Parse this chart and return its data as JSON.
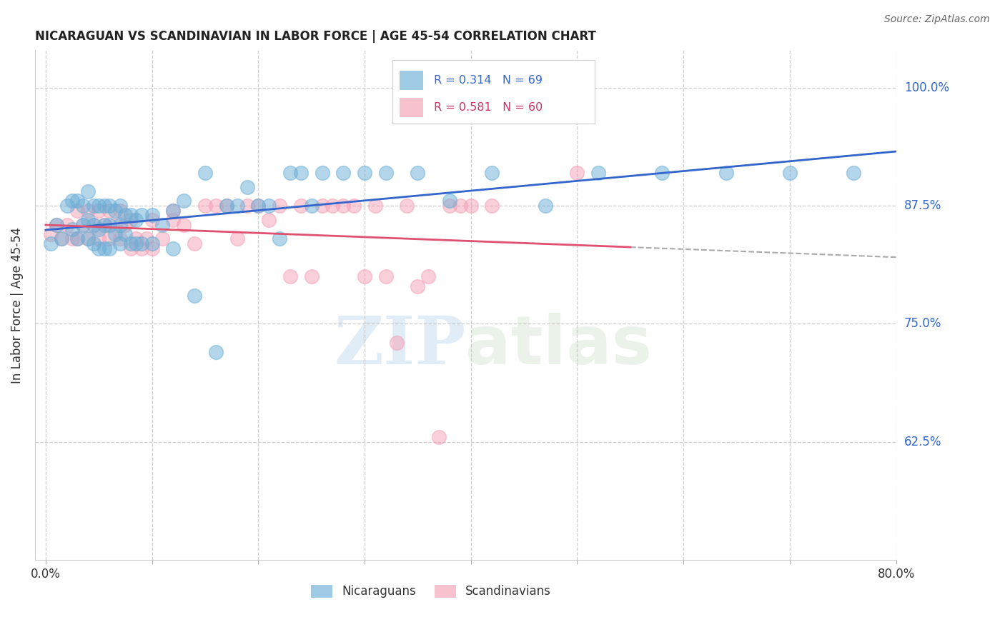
{
  "title": "NICARAGUAN VS SCANDINAVIAN IN LABOR FORCE | AGE 45-54 CORRELATION CHART",
  "source": "Source: ZipAtlas.com",
  "ylabel": "In Labor Force | Age 45-54",
  "x_min": 0.0,
  "x_max": 0.8,
  "y_min": 0.5,
  "y_max": 1.04,
  "y_ticks": [
    0.625,
    0.75,
    0.875,
    1.0
  ],
  "y_tick_labels": [
    "62.5%",
    "75.0%",
    "87.5%",
    "100.0%"
  ],
  "x_ticks": [
    0.0,
    0.1,
    0.2,
    0.3,
    0.4,
    0.5,
    0.6,
    0.7,
    0.8
  ],
  "x_tick_labels": [
    "0.0%",
    "",
    "",
    "",
    "",
    "",
    "",
    "",
    "80.0%"
  ],
  "legend_blue_label": "Nicaraguans",
  "legend_pink_label": "Scandinavians",
  "R_blue": 0.314,
  "N_blue": 69,
  "R_pink": 0.581,
  "N_pink": 60,
  "blue_color": "#6baed6",
  "pink_color": "#f4a0b5",
  "line_blue": "#3366cc",
  "line_pink": "#e05070",
  "watermark_zip": "ZIP",
  "watermark_atlas": "atlas",
  "blue_scatter_x": [
    0.005,
    0.01,
    0.015,
    0.02,
    0.025,
    0.025,
    0.03,
    0.03,
    0.035,
    0.035,
    0.04,
    0.04,
    0.04,
    0.045,
    0.045,
    0.045,
    0.05,
    0.05,
    0.05,
    0.055,
    0.055,
    0.055,
    0.06,
    0.06,
    0.06,
    0.065,
    0.065,
    0.07,
    0.07,
    0.07,
    0.075,
    0.075,
    0.08,
    0.08,
    0.085,
    0.085,
    0.09,
    0.09,
    0.1,
    0.1,
    0.11,
    0.12,
    0.12,
    0.13,
    0.14,
    0.15,
    0.16,
    0.17,
    0.18,
    0.19,
    0.2,
    0.21,
    0.22,
    0.23,
    0.24,
    0.25,
    0.26,
    0.28,
    0.3,
    0.32,
    0.35,
    0.38,
    0.42,
    0.47,
    0.52,
    0.58,
    0.64,
    0.7,
    0.76
  ],
  "blue_scatter_y": [
    0.835,
    0.855,
    0.84,
    0.875,
    0.85,
    0.88,
    0.84,
    0.88,
    0.855,
    0.875,
    0.84,
    0.86,
    0.89,
    0.835,
    0.855,
    0.875,
    0.83,
    0.85,
    0.875,
    0.83,
    0.855,
    0.875,
    0.83,
    0.855,
    0.875,
    0.845,
    0.87,
    0.835,
    0.855,
    0.875,
    0.845,
    0.865,
    0.835,
    0.865,
    0.835,
    0.86,
    0.835,
    0.865,
    0.835,
    0.865,
    0.855,
    0.83,
    0.87,
    0.88,
    0.78,
    0.91,
    0.72,
    0.875,
    0.875,
    0.895,
    0.875,
    0.875,
    0.84,
    0.91,
    0.91,
    0.875,
    0.91,
    0.91,
    0.91,
    0.91,
    0.91,
    0.88,
    0.91,
    0.875,
    0.91,
    0.91,
    0.91,
    0.91,
    0.91
  ],
  "pink_scatter_x": [
    0.005,
    0.01,
    0.015,
    0.02,
    0.025,
    0.03,
    0.03,
    0.035,
    0.04,
    0.04,
    0.045,
    0.05,
    0.05,
    0.055,
    0.06,
    0.06,
    0.065,
    0.07,
    0.07,
    0.075,
    0.08,
    0.08,
    0.085,
    0.09,
    0.095,
    0.1,
    0.1,
    0.11,
    0.12,
    0.12,
    0.13,
    0.14,
    0.15,
    0.16,
    0.17,
    0.18,
    0.19,
    0.2,
    0.21,
    0.22,
    0.23,
    0.24,
    0.25,
    0.26,
    0.27,
    0.28,
    0.29,
    0.3,
    0.31,
    0.32,
    0.33,
    0.34,
    0.35,
    0.36,
    0.37,
    0.38,
    0.39,
    0.4,
    0.42,
    0.5
  ],
  "pink_scatter_y": [
    0.845,
    0.855,
    0.84,
    0.855,
    0.84,
    0.84,
    0.87,
    0.855,
    0.84,
    0.87,
    0.855,
    0.84,
    0.87,
    0.855,
    0.84,
    0.87,
    0.855,
    0.84,
    0.87,
    0.855,
    0.83,
    0.86,
    0.84,
    0.83,
    0.84,
    0.83,
    0.86,
    0.84,
    0.86,
    0.87,
    0.855,
    0.835,
    0.875,
    0.875,
    0.875,
    0.84,
    0.875,
    0.875,
    0.86,
    0.875,
    0.8,
    0.875,
    0.8,
    0.875,
    0.875,
    0.875,
    0.875,
    0.8,
    0.875,
    0.8,
    0.73,
    0.875,
    0.79,
    0.8,
    0.63,
    0.875,
    0.875,
    0.875,
    0.875,
    0.91
  ]
}
